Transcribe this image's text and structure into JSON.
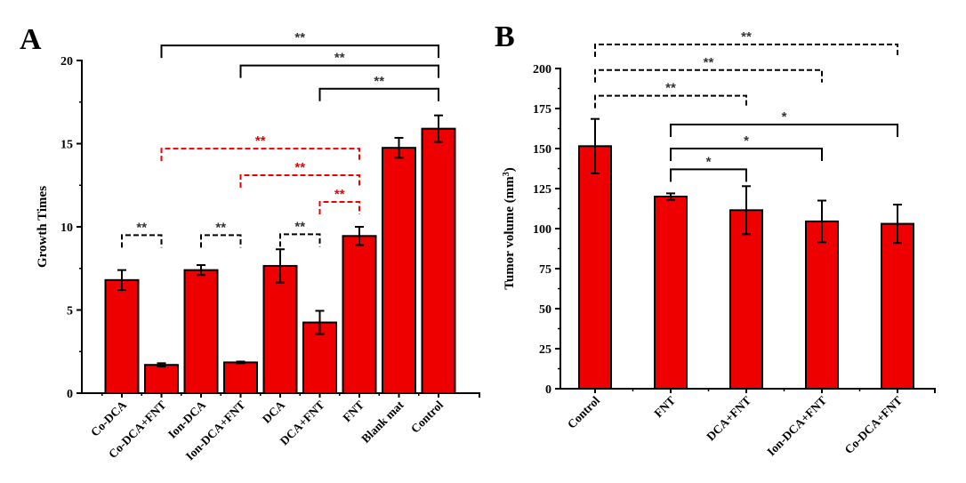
{
  "chart_data": [
    {
      "type": "bar",
      "panel": "A",
      "title": "",
      "xlabel": "",
      "ylabel": "Growth Times",
      "ylim": [
        0,
        20
      ],
      "yticks": [
        0,
        5,
        10,
        15,
        20
      ],
      "grid": false,
      "bar_color": "#ee0000",
      "categories": [
        "Co-DCA",
        "Co-DCA+FNT",
        "Ion-DCA",
        "Ion-DCA+FNT",
        "DCA",
        "DCA+FNT",
        "FNT",
        "Blank mat",
        "Control"
      ],
      "values": [
        6.8,
        1.7,
        7.4,
        1.85,
        7.65,
        4.25,
        9.45,
        14.75,
        15.9
      ],
      "errors": [
        0.6,
        0.1,
        0.3,
        0.05,
        1.0,
        0.7,
        0.55,
        0.6,
        0.8
      ],
      "significance": [
        {
          "from": "Co-DCA",
          "to": "Co-DCA+FNT",
          "label": "**",
          "style": "dashed",
          "color": "#000000",
          "level": 9.5
        },
        {
          "from": "Ion-DCA",
          "to": "Ion-DCA+FNT",
          "label": "**",
          "style": "dashed",
          "color": "#000000",
          "level": 9.5
        },
        {
          "from": "DCA",
          "to": "DCA+FNT",
          "label": "**",
          "style": "dashed",
          "color": "#000000",
          "level": 9.55
        },
        {
          "from": "DCA+FNT",
          "to": "FNT",
          "label": "**",
          "style": "dashed",
          "color": "#ee0000",
          "level": 11.5
        },
        {
          "from": "Ion-DCA+FNT",
          "to": "FNT",
          "label": "**",
          "style": "dashed",
          "color": "#ee0000",
          "level": 13.1
        },
        {
          "from": "Co-DCA+FNT",
          "to": "FNT",
          "label": "**",
          "style": "dashed",
          "color": "#ee0000",
          "level": 14.7
        },
        {
          "from": "DCA+FNT",
          "to": "Control",
          "label": "**",
          "style": "solid",
          "color": "#000000",
          "level": 18.3
        },
        {
          "from": "Ion-DCA+FNT",
          "to": "Control",
          "label": "**",
          "style": "solid",
          "color": "#000000",
          "level": 19.7
        },
        {
          "from": "Co-DCA+FNT",
          "to": "Control",
          "label": "**",
          "style": "solid",
          "color": "#000000",
          "level": 20.9
        }
      ]
    },
    {
      "type": "bar",
      "panel": "B",
      "title": "",
      "xlabel": "",
      "ylabel": "Tumor volume (mm",
      "ylabel_sup": "3",
      "ylabel_close": ")",
      "ylim": [
        0,
        200
      ],
      "yticks": [
        0,
        25,
        50,
        75,
        100,
        125,
        150,
        175,
        200
      ],
      "grid": false,
      "bar_color": "#ee0000",
      "categories": [
        "Control",
        "FNT",
        "DCA+FNT",
        "Ion-DCA+FNT",
        "Co-DCA+FNT"
      ],
      "values": [
        151.5,
        120,
        111.5,
        104.5,
        103
      ],
      "errors": [
        17,
        2,
        15,
        13,
        12
      ],
      "significance": [
        {
          "from": "FNT",
          "to": "DCA+FNT",
          "label": "*",
          "style": "solid",
          "color": "#000000",
          "level": 137
        },
        {
          "from": "FNT",
          "to": "Ion-DCA+FNT",
          "label": "*",
          "style": "solid",
          "color": "#000000",
          "level": 150
        },
        {
          "from": "FNT",
          "to": "Co-DCA+FNT",
          "label": "*",
          "style": "solid",
          "color": "#000000",
          "level": 165
        },
        {
          "from": "Control",
          "to": "DCA+FNT",
          "label": "**",
          "style": "dashed",
          "color": "#000000",
          "level": 183
        },
        {
          "from": "Control",
          "to": "Ion-DCA+FNT",
          "label": "**",
          "style": "dashed",
          "color": "#000000",
          "level": 199
        },
        {
          "from": "Control",
          "to": "Co-DCA+FNT",
          "label": "**",
          "style": "dashed",
          "color": "#000000",
          "level": 215
        }
      ]
    }
  ],
  "panels": {
    "a_letter": "A",
    "b_letter": "B"
  }
}
